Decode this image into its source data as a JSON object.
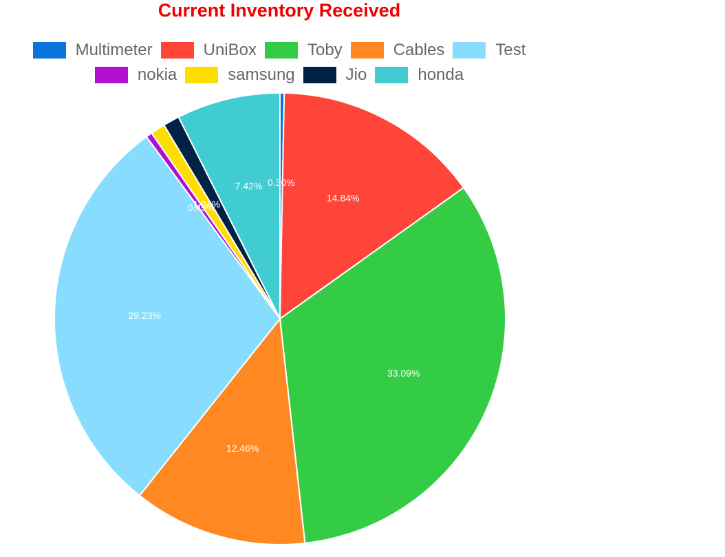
{
  "chart_data": {
    "type": "pie",
    "title": "Current Inventory Received",
    "legend_position": "top",
    "categories": [
      "Multimeter",
      "UniBox",
      "Toby",
      "Cables",
      "Test",
      "nokia",
      "samsung",
      "Jio",
      "honda"
    ],
    "values": [
      0.3,
      14.84,
      33.09,
      12.46,
      29.23,
      0.45,
      1.04,
      1.17,
      7.42
    ],
    "labels": [
      "0.30%",
      "14.84%",
      "33.09%",
      "12.46%",
      "29.23%",
      "0.45%",
      "1.04%",
      "",
      "7.42%"
    ],
    "colors": [
      "#0a74da",
      "#ff443a",
      "#33cc44",
      "#ff8822",
      "#88ddff",
      "#b010d0",
      "#ffdd00",
      "#002244",
      "#40ccd0"
    ]
  }
}
